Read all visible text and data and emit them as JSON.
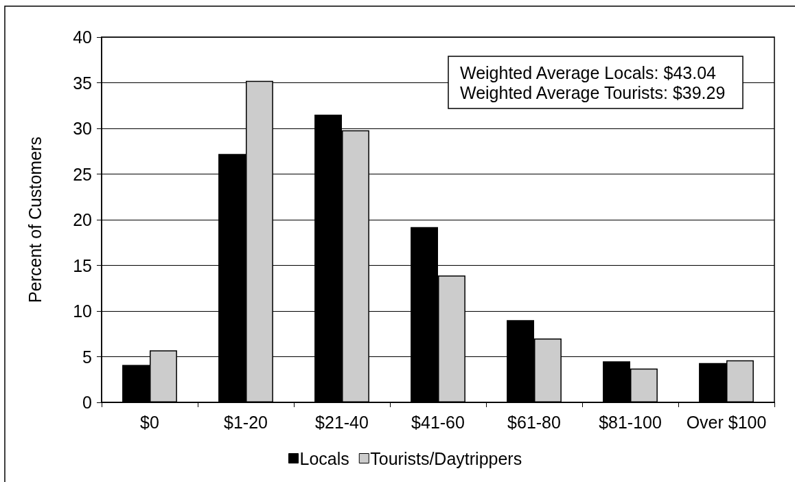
{
  "chart_data": {
    "type": "bar",
    "ylabel": "Percent of Customers",
    "categories": [
      "$0",
      "$1-20",
      "$21-40",
      "$41-60",
      "$61-80",
      "$81-100",
      "Over $100"
    ],
    "series": [
      {
        "name": "Locals",
        "color": "#000000",
        "values": [
          4.1,
          27.2,
          31.5,
          19.2,
          9.0,
          4.5,
          4.3
        ]
      },
      {
        "name": "Tourists/Daytrippers",
        "color": "#cccccc",
        "values": [
          5.7,
          35.2,
          29.8,
          13.9,
          7.0,
          3.7,
          4.6
        ]
      }
    ],
    "ylim": [
      0,
      40
    ],
    "yticks": [
      0,
      5,
      10,
      15,
      20,
      25,
      30,
      35,
      40
    ],
    "grid": "y",
    "legend": "bottom",
    "annotations": [
      "Weighted Average Locals: $43.04",
      "Weighted Average Tourists: $39.29"
    ]
  }
}
